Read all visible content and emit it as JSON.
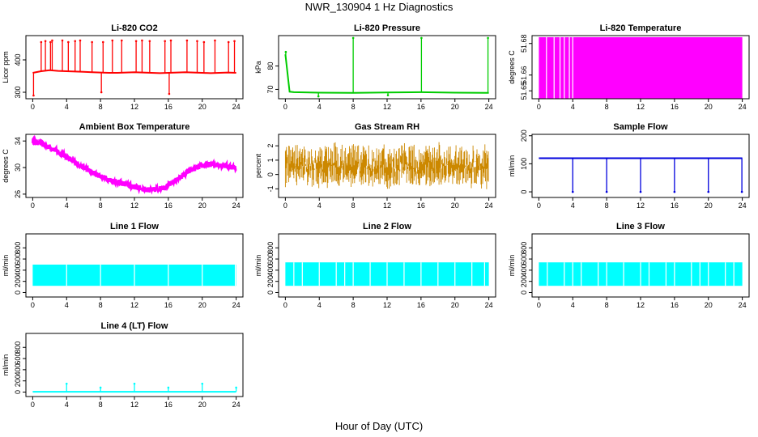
{
  "title": "NWR_130904  1 Hz Diagnostics",
  "xlabel": "Hour of Day (UTC)",
  "chart_data": [
    {
      "type": "line",
      "title": "Li-820 CO2",
      "ylabel": "Licor ppm",
      "color": "#ff0000",
      "xlim": [
        -0.8,
        24.8
      ],
      "ylim": [
        280,
        475
      ],
      "xticks": [
        0,
        4,
        8,
        12,
        16,
        20,
        24
      ],
      "yticks": [
        300,
        400
      ],
      "x": [
        0,
        1,
        2,
        3,
        4,
        5,
        6,
        7,
        8,
        9,
        10,
        11,
        12,
        13,
        14,
        15,
        16,
        17,
        18,
        19,
        20,
        21,
        22,
        23,
        24
      ],
      "y": [
        360,
        365,
        368,
        366,
        365,
        364,
        363,
        362,
        361,
        360,
        360,
        361,
        362,
        361,
        360,
        359,
        360,
        361,
        362,
        361,
        360,
        359,
        360,
        361,
        360
      ],
      "spikes": [
        {
          "x": 0.1,
          "y": 290
        },
        {
          "x": 1.0,
          "y": 455
        },
        {
          "x": 1.5,
          "y": 458
        },
        {
          "x": 2.1,
          "y": 455
        },
        {
          "x": 2.3,
          "y": 460
        },
        {
          "x": 3.5,
          "y": 460
        },
        {
          "x": 4.2,
          "y": 455
        },
        {
          "x": 5.0,
          "y": 458
        },
        {
          "x": 5.6,
          "y": 460
        },
        {
          "x": 7.0,
          "y": 455
        },
        {
          "x": 8.1,
          "y": 300
        },
        {
          "x": 8.3,
          "y": 455
        },
        {
          "x": 9.4,
          "y": 460
        },
        {
          "x": 10.5,
          "y": 460
        },
        {
          "x": 12.2,
          "y": 458
        },
        {
          "x": 12.9,
          "y": 460
        },
        {
          "x": 13.8,
          "y": 458
        },
        {
          "x": 15.6,
          "y": 458
        },
        {
          "x": 16.1,
          "y": 295
        },
        {
          "x": 16.3,
          "y": 460
        },
        {
          "x": 18.2,
          "y": 460
        },
        {
          "x": 19.4,
          "y": 458
        },
        {
          "x": 20.2,
          "y": 455
        },
        {
          "x": 21.5,
          "y": 460
        },
        {
          "x": 23.1,
          "y": 455
        },
        {
          "x": 23.8,
          "y": 458
        }
      ]
    },
    {
      "type": "line",
      "title": "Li-820 Pressure",
      "ylabel": "kPa",
      "color": "#00cc00",
      "xlim": [
        -0.8,
        24.8
      ],
      "ylim": [
        66,
        93
      ],
      "xticks": [
        0,
        4,
        8,
        12,
        16,
        20,
        24
      ],
      "yticks": [
        70,
        80
      ],
      "x": [
        0,
        0.5,
        1,
        4,
        8,
        12,
        16,
        20,
        24
      ],
      "y": [
        85,
        69,
        68.8,
        68.6,
        68.5,
        68.7,
        68.8,
        68.6,
        68.5
      ],
      "spikes": [
        {
          "x": 0.05,
          "y": 86
        },
        {
          "x": 3.9,
          "y": 67
        },
        {
          "x": 8.0,
          "y": 92
        },
        {
          "x": 12.1,
          "y": 67.5
        },
        {
          "x": 16.05,
          "y": 92
        },
        {
          "x": 23.9,
          "y": 92
        }
      ]
    },
    {
      "type": "area",
      "title": "Li-820 Temperature",
      "ylabel": "degrees C",
      "color": "#ff00ff",
      "xlim": [
        -0.8,
        24.8
      ],
      "ylim": [
        51.645,
        51.685
      ],
      "xticks": [
        0,
        4,
        8,
        12,
        16,
        20,
        24
      ],
      "yticks": [
        51.65,
        51.66,
        51.68
      ],
      "band": {
        "x_start": 0,
        "x_end": 24,
        "low": 51.645,
        "high": 51.684
      },
      "gaps": [
        0.9,
        1.8,
        2.5,
        3.0,
        3.6,
        4.0
      ]
    },
    {
      "type": "line",
      "title": "Ambient Box Temperature",
      "ylabel": "degrees C",
      "color": "#ff00ff",
      "xlim": [
        -0.8,
        24.8
      ],
      "ylim": [
        25.5,
        35
      ],
      "xticks": [
        0,
        4,
        8,
        12,
        16,
        20,
        24
      ],
      "yticks": [
        26,
        30,
        34
      ],
      "x": [
        0,
        1,
        2,
        3,
        4,
        5,
        6,
        7,
        8,
        9,
        10,
        11,
        12,
        13,
        14,
        15,
        16,
        17,
        18,
        19,
        20,
        21,
        22,
        23,
        24
      ],
      "y": [
        34.0,
        33.6,
        33.1,
        32.4,
        31.6,
        30.8,
        30.0,
        29.3,
        28.7,
        28.2,
        27.8,
        27.5,
        27.1,
        26.8,
        26.6,
        26.8,
        27.3,
        28.2,
        29.1,
        29.8,
        30.3,
        30.5,
        30.4,
        30.2,
        30.0
      ],
      "noise": 0.4
    },
    {
      "type": "area",
      "title": "Gas Stream RH",
      "ylabel": "percent",
      "color": "#cc8800",
      "xlim": [
        -0.8,
        24.8
      ],
      "ylim": [
        -1.6,
        2.8
      ],
      "xticks": [
        0,
        4,
        8,
        12,
        16,
        20,
        24
      ],
      "yticks": [
        -1,
        0,
        1,
        2
      ],
      "band": {
        "x_start": 0,
        "x_end": 24,
        "low": -1.3,
        "high": 2.4
      },
      "noise": 1.6
    },
    {
      "type": "line",
      "title": "Sample Flow",
      "ylabel": "ml/min",
      "color": "#0000dd",
      "xlim": [
        -0.8,
        24.8
      ],
      "ylim": [
        -20,
        205
      ],
      "xticks": [
        0,
        4,
        8,
        12,
        16,
        20,
        24
      ],
      "yticks": [
        0,
        100,
        200
      ],
      "x": [
        0,
        24
      ],
      "y": [
        120,
        120
      ],
      "spikes": [
        {
          "x": 4.0,
          "y": 0
        },
        {
          "x": 8.0,
          "y": 0
        },
        {
          "x": 12.0,
          "y": 0
        },
        {
          "x": 16.0,
          "y": 0
        },
        {
          "x": 20.0,
          "y": 0
        },
        {
          "x": 23.95,
          "y": 0
        }
      ]
    },
    {
      "type": "area",
      "title": "Line 1 Flow",
      "ylabel": "ml/min",
      "color": "#00ffff",
      "xlim": [
        -0.8,
        24.8
      ],
      "ylim": [
        -80,
        1050
      ],
      "xticks": [
        0,
        4,
        8,
        12,
        16,
        20,
        24
      ],
      "yticks": [
        0,
        200,
        400,
        600,
        800
      ],
      "band": {
        "x_start": 0,
        "x_end": 24,
        "low": 120,
        "high": 500
      },
      "gaps": [
        4.0,
        8.0,
        12.0,
        16.0,
        20.0,
        23.9
      ]
    },
    {
      "type": "area",
      "title": "Line 2 Flow",
      "ylabel": "ml/min",
      "color": "#00ffff",
      "xlim": [
        -0.8,
        24.8
      ],
      "ylim": [
        -80,
        1050
      ],
      "xticks": [
        0,
        4,
        8,
        12,
        16,
        20,
        24
      ],
      "yticks": [
        0,
        200,
        400,
        600,
        800
      ],
      "band": {
        "x_start": 0,
        "x_end": 24,
        "low": 120,
        "high": 540
      },
      "gaps": [
        1.0,
        2.0,
        4.0,
        6.0,
        7.0,
        8.0,
        10.0,
        12.0,
        14.0,
        16.0,
        18.0,
        20.0,
        22.0,
        23.5
      ]
    },
    {
      "type": "area",
      "title": "Line 3 Flow",
      "ylabel": "ml/min",
      "color": "#00ffff",
      "xlim": [
        -0.8,
        24.8
      ],
      "ylim": [
        -80,
        1050
      ],
      "xticks": [
        0,
        4,
        8,
        12,
        16,
        20,
        24
      ],
      "yticks": [
        0,
        200,
        400,
        600,
        800
      ],
      "band": {
        "x_start": 0,
        "x_end": 24,
        "low": 120,
        "high": 540
      },
      "gaps": [
        1.0,
        3.0,
        4.0,
        5.0,
        7.0,
        8.0,
        10.0,
        12.0,
        13.0,
        15.0,
        16.0,
        18.0,
        19.0,
        20.0,
        22.0,
        23.0
      ]
    },
    {
      "type": "line",
      "title": "Line 4 (LT) Flow",
      "ylabel": "ml/min",
      "color": "#00ffff",
      "xlim": [
        -0.8,
        24.8
      ],
      "ylim": [
        -80,
        1050
      ],
      "xticks": [
        0,
        4,
        8,
        12,
        16,
        20,
        24
      ],
      "yticks": [
        0,
        200,
        400,
        600,
        800
      ],
      "x": [
        0,
        24
      ],
      "y": [
        5,
        5
      ],
      "spikes": [
        {
          "x": 4.0,
          "y": 150
        },
        {
          "x": 8.0,
          "y": 80
        },
        {
          "x": 12.0,
          "y": 150
        },
        {
          "x": 16.0,
          "y": 80
        },
        {
          "x": 20.0,
          "y": 150
        },
        {
          "x": 24.0,
          "y": 80
        }
      ]
    }
  ]
}
